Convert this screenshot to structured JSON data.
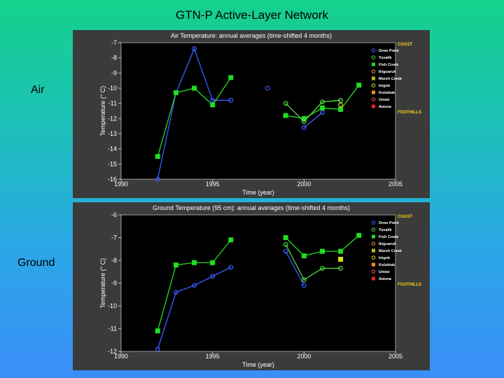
{
  "slide": {
    "title": "GTN-P  Active-Layer Network",
    "labels": [
      "Air",
      "Ground"
    ]
  },
  "legend": {
    "groups": [
      {
        "label": "COAST",
        "color": "#ffd21a"
      },
      {
        "label": "FOOTHILLS",
        "color": "#ffd21a"
      }
    ],
    "entries": [
      {
        "label": "Drew Point",
        "color": "#3a5cff",
        "marker": "circle-open"
      },
      {
        "label": "Tuvalik",
        "color": "#55dd44",
        "marker": "circle-open"
      },
      {
        "label": "Fish Creek",
        "color": "#22dd22",
        "marker": "square-filled"
      },
      {
        "label": "Ikiguaruk",
        "color": "#ff8844",
        "marker": "circle-open"
      },
      {
        "label": "Marsh Creek",
        "color": "#bbbb22",
        "marker": "square-filled"
      },
      {
        "label": "Inigok",
        "color": "#dddd22",
        "marker": "circle-open"
      },
      {
        "label": "Koluktak",
        "color": "#ff8822",
        "marker": "square-filled"
      },
      {
        "label": "Umiat",
        "color": "#ff5555",
        "marker": "circle-open"
      },
      {
        "label": "Awuna",
        "color": "#ee2222",
        "marker": "square-filled"
      }
    ]
  },
  "chart_data": [
    {
      "type": "line",
      "title": "Air Temperature: annual averages (time-shifted 4 months)",
      "xlabel": "Time (year)",
      "ylabel": "Temperature (° C)",
      "xlim": [
        1990,
        2005
      ],
      "ylim": [
        -16,
        -7
      ],
      "xticks": [
        1990,
        1995,
        2000,
        2005
      ],
      "yticks": [
        -16,
        -15,
        -14,
        -13,
        -12,
        -11,
        -10,
        -9,
        -8,
        -7
      ],
      "grid": false,
      "legend_position": "right",
      "series": [
        {
          "name": "Drew Point",
          "color": "#3a5cff",
          "marker": "circle-open",
          "segments": [
            [
              [
                1992,
                -16.0
              ],
              [
                1993,
                -10.3
              ],
              [
                1994,
                -7.4
              ],
              [
                1995,
                -10.8
              ],
              [
                1996,
                -10.8
              ]
            ],
            [
              [
                1998,
                -10.0
              ]
            ],
            [
              [
                2000,
                -12.6
              ],
              [
                2001,
                -11.6
              ]
            ]
          ]
        },
        {
          "name": "Fish Creek",
          "color": "#22dd22",
          "marker": "square-filled",
          "segments": [
            [
              [
                1992,
                -14.5
              ],
              [
                1993,
                -10.3
              ],
              [
                1994,
                -10.0
              ],
              [
                1995,
                -11.1
              ],
              [
                1996,
                -9.3
              ]
            ],
            [
              [
                1999,
                -11.8
              ],
              [
                2000,
                -12.0
              ],
              [
                2001,
                -11.3
              ],
              [
                2002,
                -11.4
              ],
              [
                2003,
                -9.8
              ]
            ]
          ]
        },
        {
          "name": "Tuvalik",
          "color": "#55dd44",
          "marker": "circle-open",
          "segments": [
            [
              [
                1999,
                -11.0
              ],
              [
                2000,
                -12.2
              ],
              [
                2001,
                -10.9
              ],
              [
                2002,
                -10.8
              ]
            ]
          ]
        },
        {
          "name": "Inigok",
          "color": "#dddd22",
          "marker": "circle-open",
          "segments": [
            [
              [
                2002,
                -11.1
              ]
            ]
          ]
        }
      ]
    },
    {
      "type": "line",
      "title": "Ground Temperature (95 cm): annual averages (time-shifted 4 months)",
      "xlabel": "Time (year)",
      "ylabel": "Temperature (° C)",
      "xlim": [
        1990,
        2005
      ],
      "ylim": [
        -12,
        -6
      ],
      "xticks": [
        1990,
        1995,
        2000,
        2005
      ],
      "yticks": [
        -12,
        -11,
        -10,
        -9,
        -8,
        -7,
        -6
      ],
      "grid": false,
      "legend_position": "right",
      "series": [
        {
          "name": "Drew Point",
          "color": "#3a5cff",
          "marker": "circle-open",
          "segments": [
            [
              [
                1992,
                -11.9
              ],
              [
                1993,
                -9.4
              ],
              [
                1994,
                -9.1
              ],
              [
                1995,
                -8.7
              ],
              [
                1996,
                -8.3
              ]
            ],
            [
              [
                1999,
                -7.6
              ],
              [
                2000,
                -9.1
              ]
            ]
          ]
        },
        {
          "name": "Fish Creek",
          "color": "#22dd22",
          "marker": "square-filled",
          "segments": [
            [
              [
                1992,
                -11.1
              ],
              [
                1993,
                -8.2
              ],
              [
                1994,
                -8.1
              ],
              [
                1995,
                -8.1
              ],
              [
                1996,
                -7.1
              ]
            ],
            [
              [
                1999,
                -7.0
              ],
              [
                2000,
                -7.8
              ],
              [
                2001,
                -7.6
              ],
              [
                2002,
                -7.6
              ],
              [
                2003,
                -6.9
              ]
            ]
          ]
        },
        {
          "name": "Tuvalik",
          "color": "#55dd44",
          "marker": "circle-open",
          "segments": [
            [
              [
                1999,
                -7.3
              ],
              [
                2000,
                -8.85
              ],
              [
                2001,
                -8.35
              ],
              [
                2002,
                -8.35
              ]
            ]
          ]
        },
        {
          "name": "Inigok",
          "color": "#dddd22",
          "marker": "square-filled",
          "segments": [
            [
              [
                2002,
                -7.95
              ]
            ]
          ]
        }
      ]
    }
  ]
}
